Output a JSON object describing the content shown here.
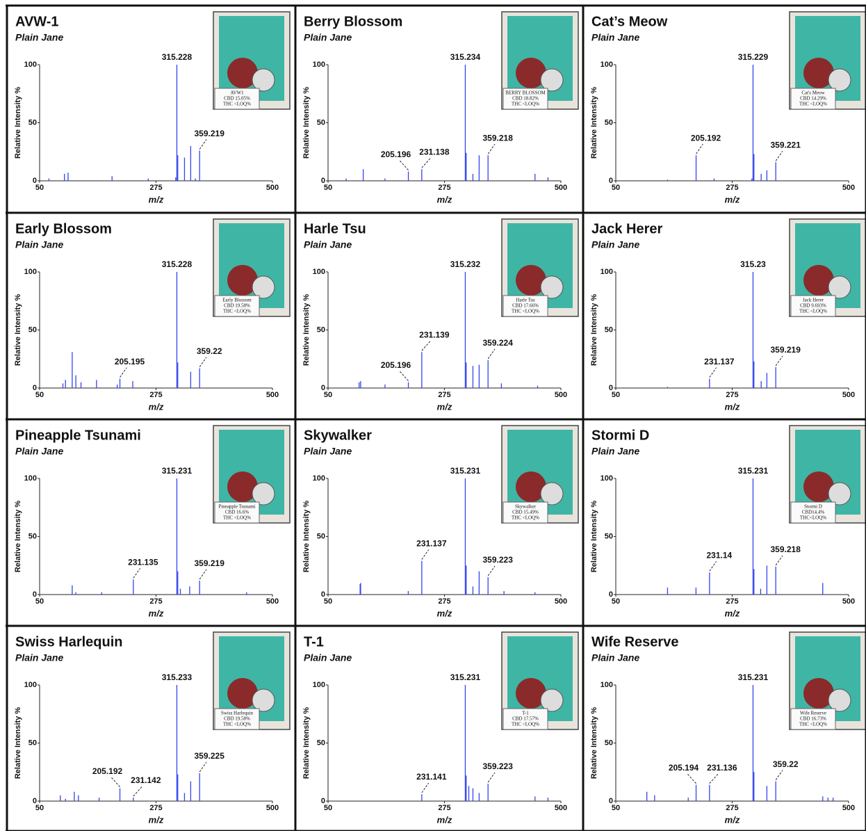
{
  "chart_data": [
    {
      "type": "spectrum",
      "title": "AVW-1",
      "subtitle": "Plain Jane",
      "ylabel": "Relative Intensity %",
      "xlabel": "m/z",
      "xlim": [
        50,
        500
      ],
      "xticks": [
        50,
        275,
        500
      ],
      "ylim": [
        0,
        100
      ],
      "yticks": [
        0,
        50,
        100
      ],
      "color": "#3344ee",
      "product_label": [
        "AVW1",
        "CBD 15.05%",
        "THC <LOQ%"
      ],
      "labeled_peaks": {
        "x": [
          315.228,
          359.219
        ],
        "values": [
          100,
          26
        ]
      },
      "peaks": {
        "x": [
          68,
          98,
          105,
          190,
          260,
          313,
          317,
          330,
          342,
          351
        ],
        "values": [
          2,
          6,
          7,
          4,
          2,
          3,
          22,
          20,
          30,
          2
        ]
      }
    },
    {
      "type": "spectrum",
      "title": "Berry Blossom",
      "subtitle": "Plain Jane",
      "ylabel": "Relative Intensity %",
      "xlabel": "m/z",
      "xlim": [
        50,
        500
      ],
      "xticks": [
        50,
        275,
        500
      ],
      "ylim": [
        0,
        100
      ],
      "yticks": [
        0,
        50,
        100
      ],
      "color": "#3344ee",
      "product_label": [
        "BERRY BLOSSOM",
        "CBD 18.82%",
        "THC <LOQ%"
      ],
      "labeled_peaks": {
        "x": [
          205.196,
          231.138,
          315.234,
          359.218
        ],
        "values": [
          8,
          10,
          100,
          22
        ]
      },
      "peaks": {
        "x": [
          85,
          118,
          160,
          317,
          330,
          342,
          450,
          475
        ],
        "values": [
          2,
          10,
          2,
          24,
          6,
          22,
          6,
          3
        ]
      }
    },
    {
      "type": "spectrum",
      "title": "Cat’s Meow",
      "subtitle": "Plain Jane",
      "ylabel": "Relative Intensity %",
      "xlabel": "m/z",
      "xlim": [
        50,
        500
      ],
      "xticks": [
        50,
        275,
        500
      ],
      "ylim": [
        0,
        100
      ],
      "yticks": [
        0,
        50,
        100
      ],
      "color": "#3344ee",
      "product_label": [
        "Cat's Meow",
        "CBD 14.29%",
        "THC <LOQ%"
      ],
      "labeled_peaks": {
        "x": [
          205.192,
          315.229,
          359.221
        ],
        "values": [
          22,
          100,
          16
        ]
      },
      "peaks": {
        "x": [
          150,
          240,
          313,
          317,
          331,
          342
        ],
        "values": [
          1,
          2,
          2,
          23,
          6,
          9
        ]
      }
    },
    {
      "type": "spectrum",
      "title": "Early Blossom",
      "subtitle": "Plain Jane",
      "ylabel": "Relative Intensity %",
      "xlabel": "m/z",
      "xlim": [
        50,
        500
      ],
      "xticks": [
        50,
        275,
        500
      ],
      "ylim": [
        0,
        100
      ],
      "yticks": [
        0,
        50,
        100
      ],
      "color": "#3344ee",
      "product_label": [
        "Early Blossom",
        "CBD 19.58%",
        "THC <LOQ%"
      ],
      "labeled_peaks": {
        "x": [
          205.195,
          315.228,
          359.22
        ],
        "values": [
          8,
          100,
          17
        ]
      },
      "peaks": {
        "x": [
          95,
          100,
          113,
          120,
          130,
          160,
          200,
          230,
          317,
          342
        ],
        "values": [
          4,
          7,
          31,
          11,
          5,
          7,
          3,
          6,
          22,
          14
        ]
      }
    },
    {
      "type": "spectrum",
      "title": "Harle Tsu",
      "subtitle": "Plain Jane",
      "ylabel": "Relative Intensity %",
      "xlabel": "m/z",
      "xlim": [
        50,
        500
      ],
      "xticks": [
        50,
        275,
        500
      ],
      "ylim": [
        0,
        100
      ],
      "yticks": [
        0,
        50,
        100
      ],
      "color": "#3344ee",
      "product_label": [
        "Harle Tsu",
        "CBD 17.66%",
        "THC <LOQ%"
      ],
      "labeled_peaks": {
        "x": [
          205.196,
          231.139,
          315.232,
          359.224
        ],
        "values": [
          5,
          31,
          100,
          24
        ]
      },
      "peaks": {
        "x": [
          110,
          113,
          160,
          317,
          330,
          342,
          385,
          455
        ],
        "values": [
          5,
          6,
          3,
          22,
          19,
          20,
          4,
          2
        ]
      }
    },
    {
      "type": "spectrum",
      "title": "Jack Herer",
      "subtitle": "Plain Jane",
      "ylabel": "Relative Intensity %",
      "xlabel": "m/z",
      "xlim": [
        50,
        500
      ],
      "xticks": [
        50,
        275,
        500
      ],
      "ylim": [
        0,
        100
      ],
      "yticks": [
        0,
        50,
        100
      ],
      "color": "#3344ee",
      "product_label": [
        "Jack Herer",
        "CBD 9.693%",
        "THC <LOQ%"
      ],
      "labeled_peaks": {
        "x": [
          231.137,
          315.23,
          359.219
        ],
        "values": [
          8,
          100,
          18
        ]
      },
      "peaks": {
        "x": [
          150,
          317,
          331,
          342
        ],
        "values": [
          1,
          23,
          6,
          13
        ]
      }
    },
    {
      "type": "spectrum",
      "title": "Pineapple Tsunami",
      "subtitle": "Plain Jane",
      "ylabel": "Relative Intensity %",
      "xlabel": "m/z",
      "xlim": [
        50,
        500
      ],
      "xticks": [
        50,
        275,
        500
      ],
      "ylim": [
        0,
        100
      ],
      "yticks": [
        0,
        50,
        100
      ],
      "color": "#3344ee",
      "product_label": [
        "Pineapple Tsunami",
        "CBD 16.6%",
        "THC <LOQ%"
      ],
      "labeled_peaks": {
        "x": [
          231.135,
          315.231,
          359.219
        ],
        "values": [
          13,
          100,
          12
        ]
      },
      "peaks": {
        "x": [
          113,
          120,
          170,
          317,
          322,
          340,
          450
        ],
        "values": [
          8,
          2,
          2,
          20,
          5,
          7,
          2
        ]
      }
    },
    {
      "type": "spectrum",
      "title": "Skywalker",
      "subtitle": "Plain Jane",
      "ylabel": "Relative Intensity %",
      "xlabel": "m/z",
      "xlim": [
        50,
        500
      ],
      "xticks": [
        50,
        275,
        500
      ],
      "ylim": [
        0,
        100
      ],
      "yticks": [
        0,
        50,
        100
      ],
      "color": "#3344ee",
      "product_label": [
        "Skywalker",
        "CBD 15.49%",
        "THC <LOQ%"
      ],
      "labeled_peaks": {
        "x": [
          231.137,
          315.231,
          359.223
        ],
        "values": [
          29,
          100,
          15
        ]
      },
      "peaks": {
        "x": [
          112,
          113,
          205,
          317,
          330,
          342,
          390,
          450
        ],
        "values": [
          9,
          10,
          3,
          25,
          7,
          20,
          3,
          2
        ]
      }
    },
    {
      "type": "spectrum",
      "title": "Stormi D",
      "subtitle": "Plain Jane",
      "ylabel": "Relative Intensity %",
      "xlabel": "m/z",
      "xlim": [
        50,
        500
      ],
      "xticks": [
        50,
        275,
        500
      ],
      "ylim": [
        0,
        100
      ],
      "yticks": [
        0,
        50,
        100
      ],
      "color": "#3344ee",
      "product_label": [
        "Stormi D",
        "CBD14.4%",
        "THC<LOQ%"
      ],
      "labeled_peaks": {
        "x": [
          231.14,
          315.231,
          359.218
        ],
        "values": [
          19,
          100,
          24
        ]
      },
      "peaks": {
        "x": [
          150,
          205,
          317,
          330,
          342,
          450
        ],
        "values": [
          6,
          6,
          22,
          5,
          25,
          10
        ]
      }
    },
    {
      "type": "spectrum",
      "title": "Swiss Harlequin",
      "subtitle": "Plain Jane",
      "ylabel": "Relative Intensity %",
      "xlabel": "m/z",
      "xlim": [
        50,
        500
      ],
      "xticks": [
        50,
        275,
        500
      ],
      "ylim": [
        0,
        100
      ],
      "yticks": [
        0,
        50,
        100
      ],
      "color": "#3344ee",
      "product_label": [
        "Swiss Harlequin",
        "CBD 19.58%",
        "THC <LOQ%"
      ],
      "labeled_peaks": {
        "x": [
          205.192,
          231.142,
          315.233,
          359.225
        ],
        "values": [
          11,
          3,
          100,
          24
        ]
      },
      "peaks": {
        "x": [
          90,
          100,
          117,
          125,
          165,
          317,
          330,
          342
        ],
        "values": [
          5,
          2,
          8,
          5,
          3,
          23,
          7,
          17
        ]
      }
    },
    {
      "type": "spectrum",
      "title": "T-1",
      "subtitle": "Plain Jane",
      "ylabel": "Relative Intensity %",
      "xlabel": "m/z",
      "xlim": [
        50,
        500
      ],
      "xticks": [
        50,
        275,
        500
      ],
      "ylim": [
        0,
        100
      ],
      "yticks": [
        0,
        50,
        100
      ],
      "color": "#3344ee",
      "product_label": [
        "T-1",
        "CBD 17.57%",
        "THC <LOQ%"
      ],
      "labeled_peaks": {
        "x": [
          231.141,
          315.231,
          359.223
        ],
        "values": [
          6,
          100,
          15
        ]
      },
      "peaks": {
        "x": [
          317,
          322,
          330,
          342,
          450,
          475
        ],
        "values": [
          22,
          13,
          11,
          7,
          4,
          3
        ]
      }
    },
    {
      "type": "spectrum",
      "title": "Wife Reserve",
      "subtitle": "Plain Jane",
      "ylabel": "Relative Intensity %",
      "xlabel": "m/z",
      "xlim": [
        50,
        500
      ],
      "xticks": [
        50,
        275,
        500
      ],
      "ylim": [
        0,
        100
      ],
      "yticks": [
        0,
        50,
        100
      ],
      "color": "#3344ee",
      "product_label": [
        "Wife Reserve",
        "CBD 16.73%",
        "THC <LOQ%"
      ],
      "labeled_peaks": {
        "x": [
          205.194,
          231.136,
          315.231,
          359.22
        ],
        "values": [
          14,
          14,
          100,
          17
        ]
      },
      "peaks": {
        "x": [
          110,
          125,
          190,
          317,
          342,
          450,
          460,
          470
        ],
        "values": [
          8,
          5,
          3,
          25,
          13,
          4,
          3,
          3
        ]
      }
    }
  ]
}
